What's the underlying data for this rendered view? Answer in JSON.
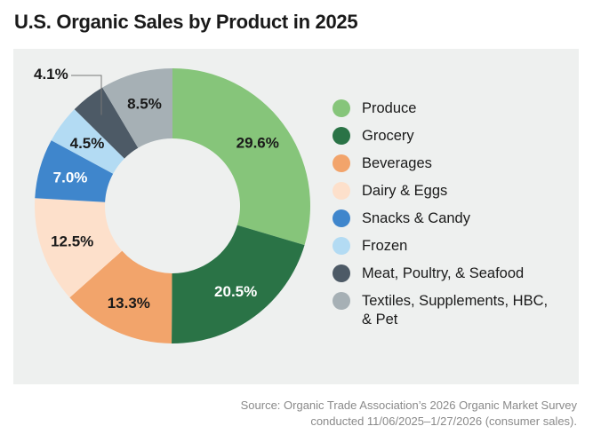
{
  "title": "U.S. Organic Sales by Product in 2025",
  "chart_data": {
    "type": "pie",
    "variant": "donut",
    "title": "U.S. Organic Sales by Product in 2025",
    "legend_placement": "right",
    "unit": "%",
    "slices": [
      {
        "name": "Produce",
        "value": 29.6,
        "label": "29.6%",
        "color": "#86c57a",
        "label_color": "#1a1a1a"
      },
      {
        "name": "Grocery",
        "value": 20.5,
        "label": "20.5%",
        "color": "#2a7346",
        "label_color": "#ffffff"
      },
      {
        "name": "Beverages",
        "value": 13.3,
        "label": "13.3%",
        "color": "#f2a46b",
        "label_color": "#1a1a1a"
      },
      {
        "name": "Dairy & Eggs",
        "value": 12.5,
        "label": "12.5%",
        "color": "#fde0cb",
        "label_color": "#1a1a1a"
      },
      {
        "name": "Snacks & Candy",
        "value": 7.0,
        "label": "7.0%",
        "color": "#3f86cc",
        "label_color": "#ffffff"
      },
      {
        "name": "Frozen",
        "value": 4.5,
        "label": "4.5%",
        "color": "#b3dbf3",
        "label_color": "#1a1a1a"
      },
      {
        "name": "Meat, Poultry, & Seafood",
        "value": 4.1,
        "label": "4.1%",
        "color": "#4d5a66",
        "label_color": "#1a1a1a"
      },
      {
        "name": "Textiles, Supplements, HBC, & Pet",
        "value": 8.5,
        "label": "8.5%",
        "color": "#a6b0b5",
        "label_color": "#1a1a1a"
      }
    ]
  },
  "source": {
    "line1": "Source: Organic Trade Association’s 2026 Organic Market Survey",
    "line2": "conducted 11/06/2025–1/27/2026 (consumer sales)."
  }
}
